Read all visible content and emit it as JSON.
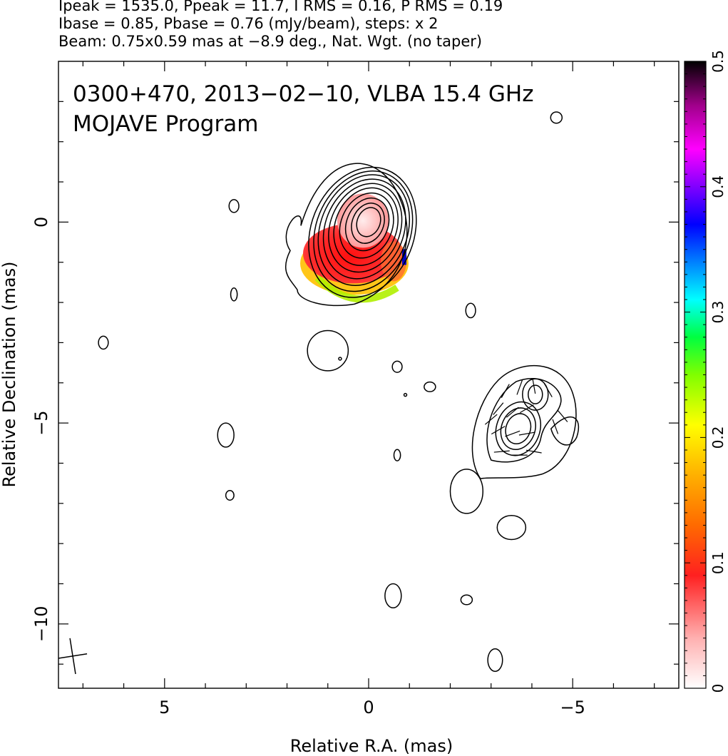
{
  "header": {
    "line1": "Ipeak = 1535.0, Ppeak = 11.7, I RMS = 0.16, P RMS = 0.19",
    "line2": "Ibase = 0.85, Pbase = 0.76 (mJy/beam), steps: x 2",
    "line3": "Beam: 0.75x0.59 mas at −8.9 deg., Nat. Wgt. (no taper)"
  },
  "chart_data": {
    "type": "heatmap",
    "title": "0300+470, 2013−02−10, VLBA 15.4 GHz",
    "subtitle": "MOJAVE Program",
    "xlabel": "Relative R.A. (mas)",
    "ylabel": "Relative Declination (mas)",
    "xlim": [
      7.6,
      -7.6
    ],
    "ylim": [
      -11.6,
      4.0
    ],
    "x_ticks": [
      5,
      0,
      -5
    ],
    "x_tick_labels": [
      "5",
      "0",
      "−5"
    ],
    "y_ticks": [
      0,
      -5,
      -10
    ],
    "y_tick_labels": [
      "0",
      "−5",
      "−10"
    ],
    "colorbar": {
      "range": [
        0,
        0.5
      ],
      "ticks": [
        0,
        0.1,
        0.2,
        0.3,
        0.4,
        0.5
      ],
      "tick_labels": [
        "0",
        "0.1",
        "0.2",
        "0.3",
        "0.4",
        "0.5"
      ]
    },
    "core_center": [
      0.0,
      0.0
    ],
    "jet_component_center": [
      -3.7,
      -5.0
    ],
    "beam": {
      "major_mas": 0.75,
      "minor_mas": 0.59,
      "pa_deg": -8.9,
      "position": "bottom-left"
    }
  }
}
